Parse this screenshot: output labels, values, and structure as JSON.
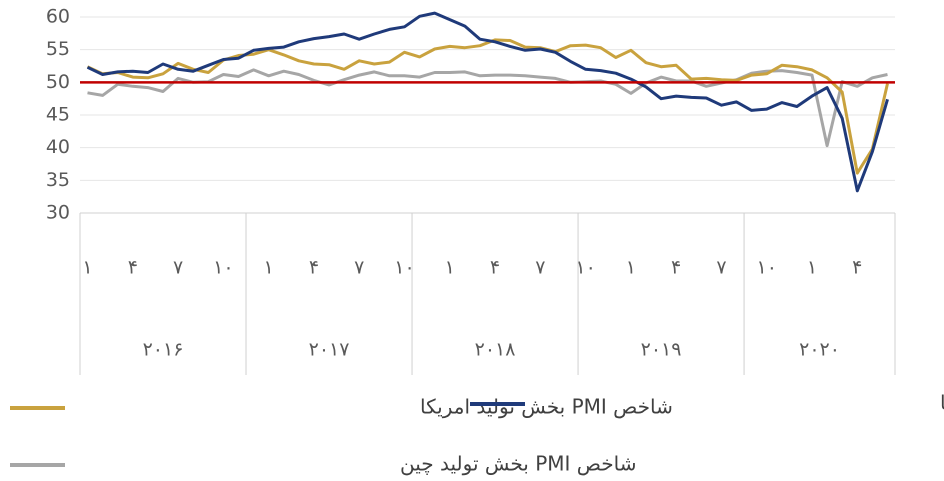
{
  "chart_data": {
    "type": "line",
    "categories": [
      "۱",
      null,
      null,
      "۴",
      null,
      null,
      "۷",
      null,
      null,
      "۱۰",
      null,
      null,
      "۱",
      null,
      null,
      "۴",
      null,
      null,
      "۷",
      null,
      null,
      "۱۰",
      null,
      null,
      "۱",
      null,
      null,
      "۴",
      null,
      null,
      "۷",
      null,
      null,
      "۱۰",
      null,
      null,
      "۱",
      null,
      null,
      "۴",
      null,
      null,
      "۷",
      null,
      null,
      "۱۰",
      null,
      null,
      "۱",
      null,
      null,
      "۴",
      null,
      null
    ],
    "groups": [
      "۲۰۱۶",
      "۲۰۱۷",
      "۲۰۱۸",
      "۲۰۱۹",
      "۲۰۲۰"
    ],
    "series": [
      {
        "name": "شاخص PMI بخش تولید امریکا",
        "color": "#c9a23e",
        "values": [
          52.4,
          51.3,
          51.5,
          50.8,
          50.7,
          51.3,
          52.9,
          52.0,
          51.5,
          53.4,
          54.1,
          54.3,
          55.0,
          54.2,
          53.3,
          52.8,
          52.7,
          52.0,
          53.3,
          52.8,
          53.1,
          54.6,
          53.9,
          55.1,
          55.5,
          55.3,
          55.6,
          56.5,
          56.4,
          55.4,
          55.3,
          54.7,
          55.6,
          55.7,
          55.3,
          53.8,
          54.9,
          53.0,
          52.4,
          52.6,
          50.5,
          50.6,
          50.4,
          50.3,
          51.1,
          51.3,
          52.6,
          52.4,
          51.9,
          50.7,
          48.5,
          36.1,
          39.8,
          49.8
        ]
      },
      {
        "name": "شاخص PMI بخش تولید اتحادیه اروپا",
        "color": "#1f3a7a",
        "values": [
          52.3,
          51.2,
          51.6,
          51.7,
          51.5,
          52.8,
          52.0,
          51.7,
          52.6,
          53.5,
          53.7,
          54.9,
          55.2,
          55.4,
          56.2,
          56.7,
          57.0,
          57.4,
          56.6,
          57.4,
          58.1,
          58.5,
          60.1,
          60.6,
          59.6,
          58.6,
          56.6,
          56.2,
          55.5,
          54.9,
          55.1,
          54.6,
          53.2,
          52.0,
          51.8,
          51.4,
          50.5,
          49.3,
          47.5,
          47.9,
          47.7,
          47.6,
          46.5,
          47.0,
          45.7,
          45.9,
          46.9,
          46.3,
          47.9,
          49.2,
          44.5,
          33.4,
          39.4,
          47.4
        ]
      },
      {
        "name": "شاخص PMI بخش تولید چین",
        "color": "#a6a6a6",
        "values": [
          48.4,
          48.0,
          49.7,
          49.4,
          49.2,
          48.6,
          50.6,
          50.0,
          50.1,
          51.2,
          50.9,
          51.9,
          51.0,
          51.7,
          51.2,
          50.3,
          49.6,
          50.4,
          51.1,
          51.6,
          51.0,
          51.0,
          50.8,
          51.5,
          51.5,
          51.6,
          51.0,
          51.1,
          51.1,
          51.0,
          50.8,
          50.6,
          50.0,
          50.1,
          50.2,
          49.7,
          48.3,
          49.9,
          50.8,
          50.2,
          50.2,
          49.4,
          49.9,
          50.4,
          51.4,
          51.7,
          51.8,
          51.5,
          51.1,
          40.3,
          50.1,
          49.4,
          50.7,
          51.2
        ]
      }
    ],
    "reference_line": {
      "value": 50,
      "color": "#c00000"
    },
    "ylim": [
      30,
      60
    ],
    "yticks": [
      30,
      35,
      40,
      45,
      50,
      55,
      60
    ],
    "grid": true,
    "legend": "bottom"
  }
}
